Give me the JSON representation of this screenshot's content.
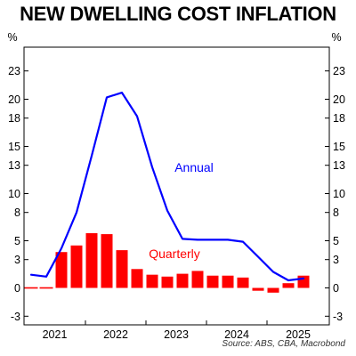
{
  "chart_data": {
    "type": "bar+line",
    "title": "NEW DWELLING COST INFLATION",
    "y_unit_left": "%",
    "y_unit_right": "%",
    "ylim": [
      -3.6,
      23
    ],
    "yticks": [
      -3,
      0,
      3,
      5,
      8,
      10,
      13,
      15,
      18,
      20,
      23
    ],
    "ytick_labels": [
      "-3",
      "0",
      "3",
      "5",
      "8",
      "10",
      "13",
      "15",
      "18",
      "20",
      "23"
    ],
    "x_tick_labels": [
      "2021",
      "2022",
      "2023",
      "2024",
      "2025"
    ],
    "x": [
      "2020-Q3",
      "2020-Q4",
      "2021-Q1",
      "2021-Q2",
      "2021-Q3",
      "2021-Q4",
      "2022-Q1",
      "2022-Q2",
      "2022-Q3",
      "2022-Q4",
      "2023-Q1",
      "2023-Q2",
      "2023-Q3",
      "2023-Q4",
      "2024-Q1",
      "2024-Q2",
      "2024-Q3",
      "2024-Q4",
      "2025-Q1",
      "2025-Q2"
    ],
    "series": [
      {
        "name": "Quarterly",
        "type": "bar",
        "color": "#ff0000",
        "values": [
          0,
          0,
          3.8,
          4.5,
          5.8,
          5.7,
          4.0,
          2.0,
          1.4,
          1.2,
          1.5,
          1.8,
          1.3,
          1.3,
          1.1,
          -0.3,
          -0.5,
          0.5,
          1.3,
          null
        ]
      },
      {
        "name": "Annual",
        "type": "line",
        "color": "#0000ff",
        "values": [
          1.4,
          1.2,
          4.2,
          8.0,
          14.0,
          20.2,
          20.7,
          18.2,
          12.8,
          8.2,
          5.2,
          5.1,
          5.1,
          5.1,
          4.9,
          3.3,
          1.7,
          0.8,
          1.0,
          null
        ]
      }
    ],
    "annotations": [
      "Annual",
      "Quarterly"
    ],
    "source": "Source: ABS, CBA, Macrobond",
    "grid": false
  }
}
